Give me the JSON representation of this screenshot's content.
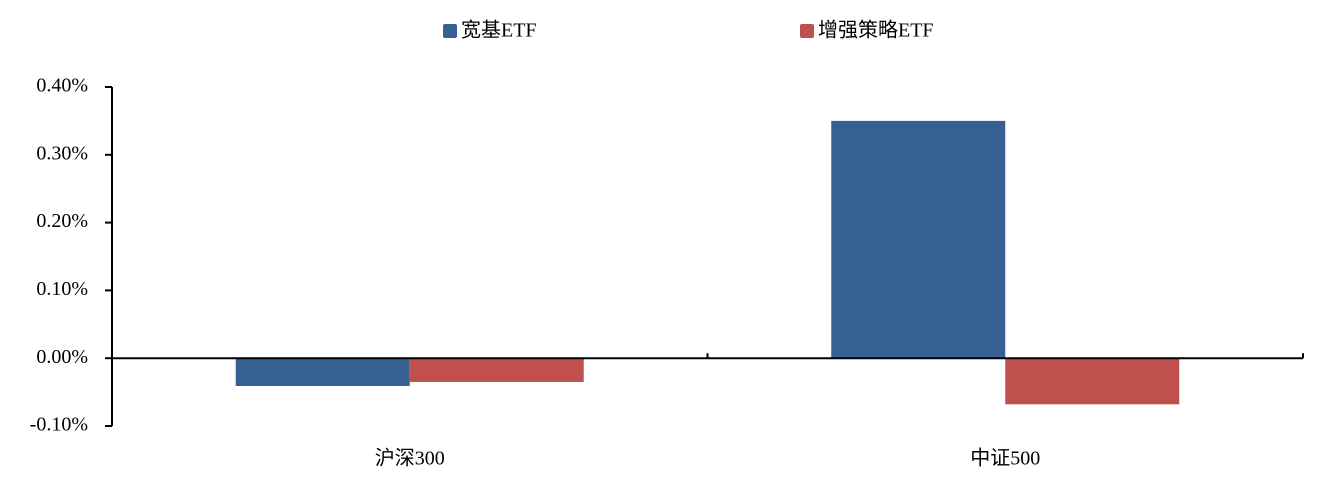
{
  "chart_data": {
    "type": "bar",
    "categories": [
      "沪深300",
      "中证500"
    ],
    "series": [
      {
        "name": "宽基ETF",
        "color": "#366092",
        "values": [
          -0.041,
          0.35
        ]
      },
      {
        "name": "增强策略ETF",
        "color": "#c0504d",
        "values": [
          -0.035,
          -0.068
        ]
      }
    ],
    "ylim": [
      -0.1,
      0.4
    ],
    "yticks": [
      {
        "value": -0.1,
        "label": "-0.10%"
      },
      {
        "value": 0,
        "label": "0.00%"
      },
      {
        "value": 0.1,
        "label": "0.10%"
      },
      {
        "value": 0.2,
        "label": "0.20%"
      },
      {
        "value": 0.3,
        "label": "0.30%"
      },
      {
        "value": 0.4,
        "label": "0.40%"
      }
    ],
    "legend": "top",
    "grid": false
  }
}
